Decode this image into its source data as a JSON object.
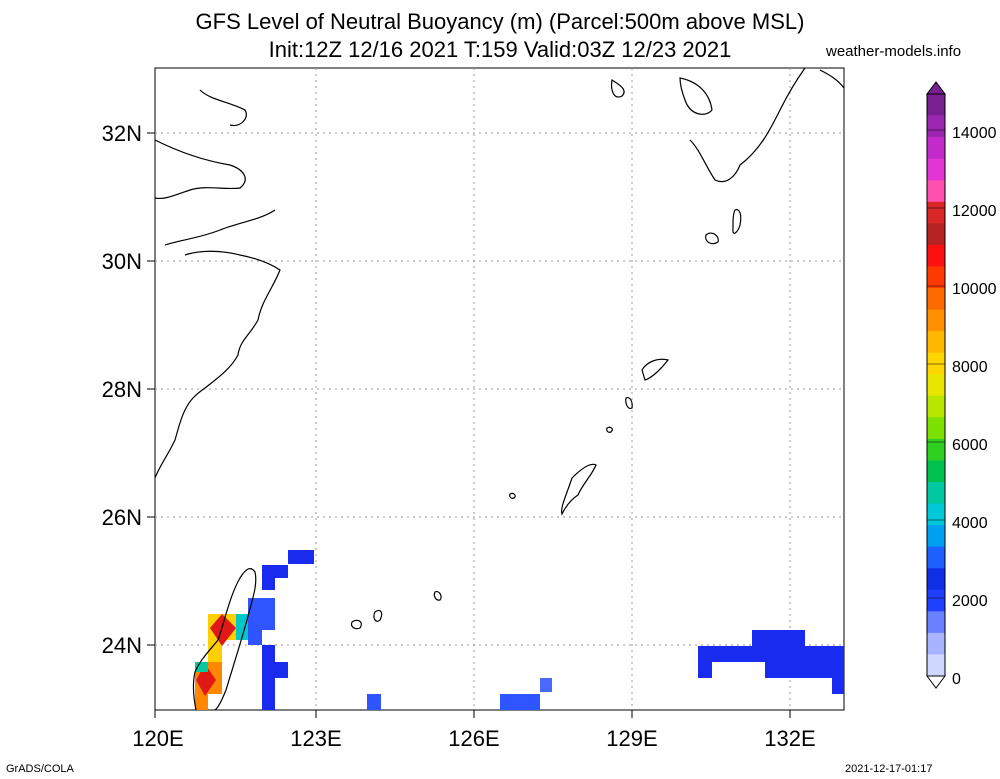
{
  "header": {
    "title_line1": "GFS Level of Neutral Buoyancy (m) (Parcel:500m above MSL)",
    "title_line2": "Init:12Z 12/16 2021 T:159 Valid:03Z 12/23 2021",
    "site": "weather-models.info"
  },
  "footer": {
    "credit": "GrADS/COLA",
    "timestamp": "2021-12-17-01:17"
  },
  "map": {
    "lat_labels": [
      "32N",
      "30N",
      "28N",
      "26N",
      "24N"
    ],
    "lon_labels": [
      "120E",
      "123E",
      "126E",
      "129E",
      "132E"
    ],
    "grid": true
  },
  "colorbar": {
    "labels": [
      "14000",
      "12000",
      "10000",
      "8000",
      "6000",
      "4000",
      "2000",
      "0"
    ],
    "colors": [
      "#7a1f8f",
      "#9b27b0",
      "#c22bc9",
      "#e335d5",
      "#ff4fb0",
      "#d92727",
      "#b52222",
      "#ff1010",
      "#ff3a00",
      "#ff6a00",
      "#ff9100",
      "#ffb800",
      "#ffd400",
      "#e8e600",
      "#b8e600",
      "#7ce000",
      "#30d020",
      "#00c050",
      "#00c8a0",
      "#00c8d8",
      "#00a0f0",
      "#1e60ff",
      "#1030e8",
      "#2040ff",
      "#6a80ff",
      "#a8b4ff",
      "#d0d8ff"
    ]
  },
  "shading": {
    "blue": "#1a2bf0",
    "blue_mid": "#2e55ff",
    "red": "#e01818",
    "orange": "#ff8800",
    "yellow": "#ffd000",
    "cyan": "#00c8c8"
  }
}
